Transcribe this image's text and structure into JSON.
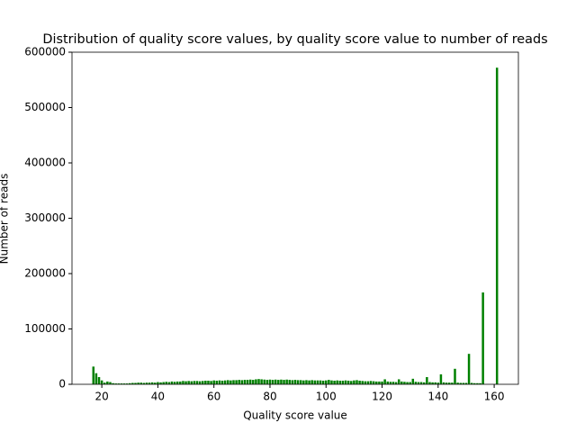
{
  "chart_data": {
    "type": "bar",
    "title": "Distribution of quality score values, by quality score value to number of reads",
    "xlabel": "Quality score value",
    "ylabel": "Number of reads",
    "color": "green",
    "x": [
      17,
      18,
      19,
      20,
      21,
      22,
      23,
      24,
      25,
      26,
      27,
      28,
      29,
      30,
      31,
      32,
      33,
      34,
      35,
      36,
      37,
      38,
      39,
      40,
      41,
      42,
      43,
      44,
      45,
      46,
      47,
      48,
      49,
      50,
      51,
      52,
      53,
      54,
      55,
      56,
      57,
      58,
      59,
      60,
      61,
      62,
      63,
      64,
      65,
      66,
      67,
      68,
      69,
      70,
      71,
      72,
      73,
      74,
      75,
      76,
      77,
      78,
      79,
      80,
      81,
      82,
      83,
      84,
      85,
      86,
      87,
      88,
      89,
      90,
      91,
      92,
      93,
      94,
      95,
      96,
      97,
      98,
      99,
      100,
      101,
      102,
      103,
      104,
      105,
      106,
      107,
      108,
      109,
      110,
      111,
      112,
      113,
      114,
      115,
      116,
      117,
      118,
      119,
      120,
      121,
      122,
      123,
      124,
      125,
      126,
      127,
      128,
      129,
      130,
      131,
      132,
      133,
      134,
      135,
      136,
      137,
      138,
      139,
      140,
      141,
      142,
      143,
      144,
      145,
      146,
      147,
      148,
      149,
      150,
      151,
      152,
      153,
      154,
      155,
      156,
      161
    ],
    "values": [
      32000,
      20000,
      13000,
      7000,
      3000,
      5000,
      4000,
      2000,
      1500,
      1500,
      1500,
      1500,
      1500,
      2000,
      2500,
      2500,
      3000,
      3000,
      2500,
      3000,
      3000,
      3500,
      3000,
      4000,
      3500,
      4000,
      4500,
      4000,
      5000,
      4500,
      5000,
      5000,
      6000,
      5500,
      6000,
      5500,
      6000,
      6000,
      5500,
      6000,
      6500,
      6500,
      6000,
      7000,
      6500,
      7000,
      6500,
      7000,
      7500,
      7000,
      7500,
      7500,
      8000,
      7500,
      8000,
      8000,
      8500,
      8000,
      9000,
      9500,
      9000,
      8500,
      8000,
      8500,
      8000,
      8500,
      8000,
      8500,
      8000,
      8500,
      8000,
      7500,
      8000,
      7500,
      7500,
      7000,
      7500,
      7000,
      7500,
      7000,
      7000,
      7000,
      6500,
      7000,
      8000,
      7000,
      6500,
      7000,
      6500,
      6500,
      7000,
      6500,
      6000,
      7000,
      7500,
      6500,
      6000,
      5500,
      5500,
      6000,
      5500,
      5000,
      5000,
      5000,
      9000,
      5000,
      4500,
      4500,
      4000,
      9000,
      5000,
      4500,
      4000,
      4000,
      10000,
      4500,
      4000,
      4000,
      3500,
      13000,
      4000,
      3500,
      3500,
      3000,
      18000,
      3500,
      3000,
      3000,
      3000,
      28000,
      3000,
      2500,
      2500,
      2500,
      55000,
      2500,
      2000,
      2000,
      2000,
      166000,
      572000
    ],
    "bar_width": 0.8,
    "xlim": [
      9.36,
      168.64
    ],
    "xticks": [
      20,
      40,
      60,
      80,
      100,
      120,
      140,
      160
    ],
    "ylim": [
      0,
      600000
    ],
    "yticks": [
      0,
      100000,
      200000,
      300000,
      400000,
      500000,
      600000
    ]
  }
}
